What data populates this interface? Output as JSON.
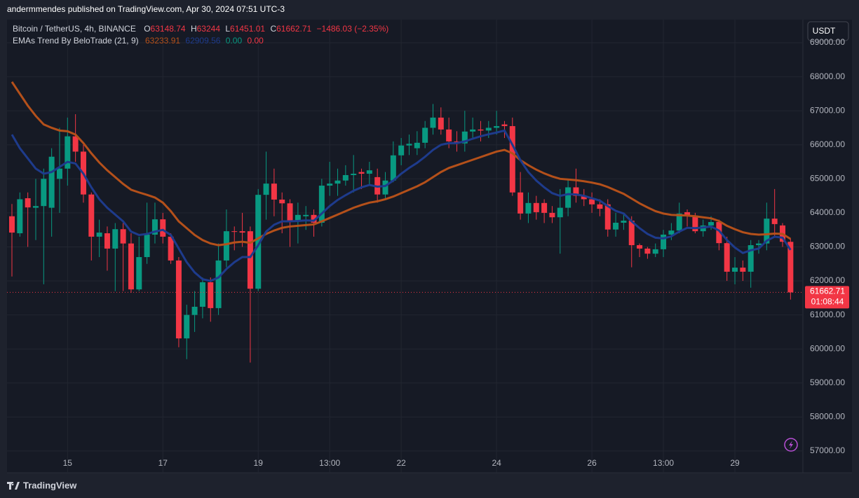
{
  "chart_data": {
    "type": "candlestick",
    "header": "andermmendes published on TradingView.com, Apr 30, 2024 07:51 UTC-3",
    "title": "Bitcoin / TetherUS, 4h, BINANCE",
    "ohlc_labels": [
      "O",
      "H",
      "L",
      "C"
    ],
    "change": "−1486.03 (−2.35%)",
    "indicator": "EMAs Trend By BeloTrade (21, 9)",
    "indicator_extra": [
      {
        "label": "0.00",
        "color": "#089981"
      },
      {
        "label": "0.00",
        "color": "#f23645"
      }
    ],
    "currency": "USDT",
    "countdown": "01:08:44",
    "brand": "TradingView",
    "up_color": "#089981",
    "down_color": "#f23645",
    "grid": true,
    "categories": [
      null,
      null,
      null,
      null,
      null,
      null,
      null,
      "15",
      null,
      null,
      null,
      null,
      null,
      null,
      null,
      null,
      null,
      null,
      null,
      "17",
      null,
      null,
      null,
      null,
      null,
      null,
      null,
      null,
      null,
      null,
      null,
      "19",
      null,
      null,
      null,
      null,
      null,
      null,
      null,
      null,
      "13:00",
      null,
      null,
      null,
      null,
      null,
      null,
      null,
      null,
      "22",
      null,
      null,
      null,
      null,
      null,
      null,
      null,
      null,
      null,
      null,
      null,
      "24",
      null,
      null,
      null,
      null,
      null,
      null,
      null,
      null,
      null,
      null,
      null,
      "26",
      null,
      null,
      null,
      null,
      null,
      null,
      null,
      null,
      "13:00",
      null,
      null,
      null,
      null,
      null,
      null,
      null,
      null,
      "29",
      null,
      null,
      null,
      null,
      null,
      null,
      null
    ],
    "open": [
      63900,
      63400,
      64430,
      64150,
      64200,
      64150,
      65000,
      65300,
      66250,
      65800,
      64540,
      63300,
      63400,
      62950,
      63520,
      63100,
      61750,
      62700,
      63360,
      63810,
      63300,
      62600,
      60310,
      61000,
      61240,
      61960,
      61200,
      62600,
      63460,
      63460,
      63460,
      61770,
      64530,
      64860,
      64390,
      64280,
      63770,
      63900,
      63940,
      63710,
      64800,
      64860,
      64950,
      65110,
      65200,
      65150,
      65050,
      64540,
      64950,
      65690,
      65980,
      65900,
      66060,
      66500,
      66800,
      66450,
      66100,
      66040,
      66390,
      66450,
      66420,
      66500,
      66600,
      66550,
      64600,
      63980,
      64290,
      64290,
      64000,
      63870,
      64150,
      64750,
      64500,
      64400,
      64250,
      64250,
      63510,
      63710,
      63770,
      63050,
      62950,
      62800,
      62930,
      63360,
      63480,
      64020,
      63920,
      63460,
      63630,
      63730,
      63110,
      62270,
      62390,
      62270,
      63050,
      63100,
      63830,
      63630,
      63148.74
    ],
    "high": [
      64260,
      64600,
      64600,
      65000,
      65300,
      65900,
      66500,
      66800,
      66900,
      66000,
      64600,
      63800,
      63600,
      63700,
      63700,
      63400,
      63300,
      64300,
      64300,
      64000,
      63400,
      62700,
      61300,
      61700,
      62100,
      62100,
      63100,
      64100,
      63600,
      64000,
      63600,
      64700,
      65800,
      65300,
      64600,
      64400,
      64300,
      64200,
      64100,
      65000,
      65500,
      65300,
      65400,
      65700,
      65300,
      65500,
      65300,
      65200,
      66100,
      66200,
      66300,
      66400,
      66700,
      67200,
      67100,
      66800,
      66400,
      67000,
      66800,
      66700,
      66700,
      67000,
      66700,
      66800,
      65200,
      64600,
      64500,
      64400,
      64200,
      64700,
      65000,
      65300,
      64700,
      64600,
      64400,
      64400,
      64000,
      64000,
      63900,
      63100,
      63000,
      63100,
      63500,
      63700,
      64300,
      64100,
      64000,
      63800,
      63900,
      63800,
      63300,
      62700,
      62600,
      63200,
      63200,
      64300,
      64700,
      63700,
      63244
    ],
    "low": [
      62130,
      63300,
      63000,
      63200,
      61900,
      63300,
      64000,
      64800,
      65500,
      64300,
      62600,
      62700,
      62300,
      61700,
      61700,
      61650,
      61700,
      62500,
      63100,
      63100,
      62500,
      60050,
      59700,
      60500,
      60900,
      60800,
      61000,
      62400,
      62900,
      63000,
      59600,
      61700,
      63800,
      63900,
      63400,
      63000,
      63100,
      63500,
      63300,
      63600,
      64500,
      64500,
      64800,
      64600,
      64700,
      64800,
      64300,
      64400,
      64900,
      65400,
      65700,
      65700,
      65900,
      66300,
      66300,
      65900,
      65800,
      65800,
      66200,
      66100,
      66200,
      66300,
      66200,
      64500,
      63800,
      63700,
      63800,
      63700,
      63700,
      62800,
      63900,
      64300,
      64200,
      64000,
      63900,
      63300,
      63300,
      63500,
      62400,
      62700,
      62650,
      62700,
      62700,
      63200,
      63400,
      63600,
      63400,
      63300,
      63500,
      62900,
      62000,
      61900,
      62000,
      61800,
      62800,
      62900,
      63300,
      63000,
      61451.01
    ],
    "close": [
      63420,
      64400,
      64160,
      64200,
      65000,
      65650,
      65300,
      66250,
      65800,
      64540,
      63300,
      63420,
      62950,
      63520,
      63100,
      61750,
      62700,
      63360,
      63810,
      63300,
      62600,
      60310,
      61000,
      61240,
      61960,
      61200,
      62600,
      63460,
      63450,
      63420,
      61770,
      64530,
      64860,
      64390,
      64280,
      63770,
      63940,
      63940,
      63710,
      64800,
      64860,
      64950,
      65110,
      65150,
      65150,
      65250,
      64540,
      64950,
      65690,
      65980,
      66030,
      66060,
      66500,
      66800,
      66450,
      66100,
      66040,
      66390,
      66450,
      66420,
      66500,
      66550,
      66550,
      64600,
      63980,
      64290,
      64020,
      64000,
      63870,
      64150,
      64750,
      64500,
      64400,
      64250,
      64120,
      63510,
      63710,
      63770,
      63050,
      62950,
      62800,
      62930,
      63360,
      63480,
      63980,
      63920,
      63460,
      63630,
      63730,
      63110,
      62270,
      62390,
      62270,
      63050,
      63100,
      63830,
      63670,
      63150,
      61662.71
    ],
    "series": [
      {
        "name": "EMA 21",
        "color": "#b4501a",
        "values": [
          67850,
          67500,
          67150,
          66850,
          66600,
          66500,
          66420,
          66400,
          66300,
          66050,
          65750,
          65480,
          65250,
          65050,
          64850,
          64680,
          64600,
          64530,
          64450,
          64300,
          64050,
          63750,
          63550,
          63350,
          63200,
          63100,
          63050,
          63080,
          63130,
          63150,
          63120,
          63250,
          63380,
          63480,
          63560,
          63600,
          63620,
          63640,
          63660,
          63750,
          63850,
          63950,
          64050,
          64150,
          64230,
          64300,
          64340,
          64400,
          64480,
          64580,
          64680,
          64780,
          64900,
          65050,
          65200,
          65320,
          65400,
          65480,
          65560,
          65640,
          65720,
          65800,
          65850,
          65750,
          65550,
          65400,
          65270,
          65160,
          65070,
          65000,
          64980,
          64960,
          64930,
          64890,
          64840,
          64760,
          64660,
          64560,
          64420,
          64280,
          64160,
          64050,
          63980,
          63940,
          63930,
          63920,
          63900,
          63870,
          63840,
          63760,
          63620,
          63520,
          63430,
          63380,
          63360,
          63370,
          63390,
          63380,
          63233.91
        ]
      },
      {
        "name": "EMA 9",
        "color": "#1e3b8c",
        "values": [
          66300,
          65900,
          65600,
          65300,
          65150,
          65200,
          65350,
          65500,
          65450,
          65150,
          64750,
          64400,
          64150,
          63950,
          63750,
          63450,
          63350,
          63380,
          63450,
          63500,
          63350,
          62950,
          62550,
          62250,
          62050,
          62000,
          62100,
          62350,
          62550,
          62700,
          62700,
          63050,
          63450,
          63650,
          63750,
          63750,
          63760,
          63780,
          63770,
          63980,
          64200,
          64380,
          64520,
          64650,
          64750,
          64820,
          64770,
          64790,
          64950,
          65150,
          65320,
          65470,
          65650,
          65850,
          66000,
          66050,
          66050,
          66100,
          66180,
          66250,
          66310,
          66360,
          66420,
          66000,
          65550,
          65200,
          64950,
          64750,
          64580,
          64500,
          64550,
          64540,
          64500,
          64430,
          64360,
          64200,
          64060,
          63980,
          63750,
          63550,
          63380,
          63270,
          63250,
          63310,
          63450,
          63560,
          63550,
          63570,
          63600,
          63480,
          63200,
          62980,
          62820,
          62900,
          62950,
          63180,
          63300,
          63270,
          62909.56
        ]
      }
    ],
    "ylim": [
      56360,
      69680
    ],
    "yticks": [
      {
        "value": 57000,
        "label": "57000.00"
      },
      {
        "value": 58000,
        "label": "58000.00"
      },
      {
        "value": 59000,
        "label": "59000.00"
      },
      {
        "value": 60000,
        "label": "60000.00"
      },
      {
        "value": 61000,
        "label": "61000.00"
      },
      {
        "value": 62000,
        "label": "62000.00"
      },
      {
        "value": 63000,
        "label": "63000.00"
      },
      {
        "value": 64000,
        "label": "64000.00"
      },
      {
        "value": 65000,
        "label": "65000.00"
      },
      {
        "value": 66000,
        "label": "66000.00"
      },
      {
        "value": 67000,
        "label": "67000.00"
      },
      {
        "value": 68000,
        "label": "68000.00"
      },
      {
        "value": 69000,
        "label": "69000.00"
      }
    ]
  }
}
